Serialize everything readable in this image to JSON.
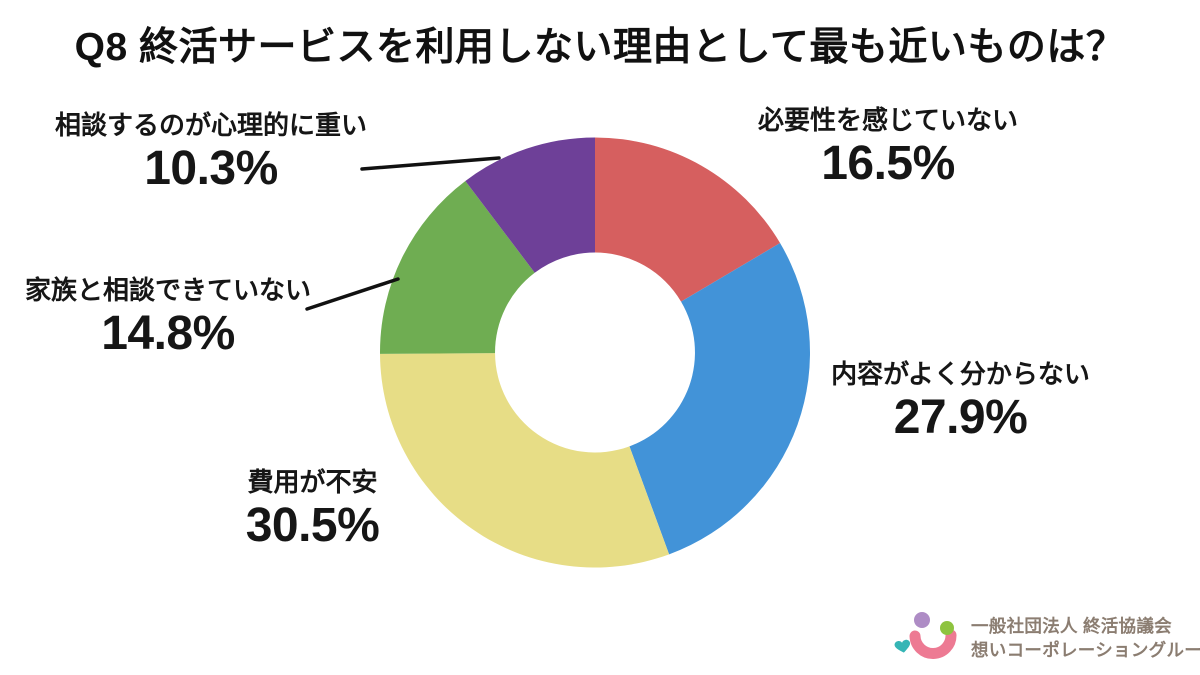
{
  "title": "Q8 終活サービスを利用しない理由として最も近いものは？",
  "background": "#FFFFFF",
  "chart_data": {
    "type": "pie",
    "subtype": "donut",
    "title": "Q8 終活サービスを利用しない理由として最も近いものは？",
    "direction": "clockwise",
    "start_angle_deg": 0,
    "donut_hole_ratio": 0.465,
    "value_suffix": "%",
    "legend_position": "callouts-around-chart",
    "segments": [
      {
        "label": "必要性を感じていない",
        "value": 16.5,
        "color": "#D65F5F"
      },
      {
        "label": "内容がよく分からない",
        "value": 27.9,
        "color": "#4293D8"
      },
      {
        "label": "費用が不安",
        "value": 30.5,
        "color": "#E7DD86"
      },
      {
        "label": "家族と相談できていない",
        "value": 14.8,
        "color": "#6FAD52"
      },
      {
        "label": "相談するのが心理的に重い",
        "value": 10.3,
        "color": "#6E4098"
      }
    ]
  },
  "logo": {
    "line1": "一般社団法人 終活協議会",
    "line2": "想いコーポレーショングループ",
    "text_color": "#8B7D71",
    "icon_colors": {
      "smile": "#ED7A93",
      "dot_left": "#AE8CC5",
      "dot_right": "#8EC33F",
      "heart": "#35B5B5"
    }
  }
}
